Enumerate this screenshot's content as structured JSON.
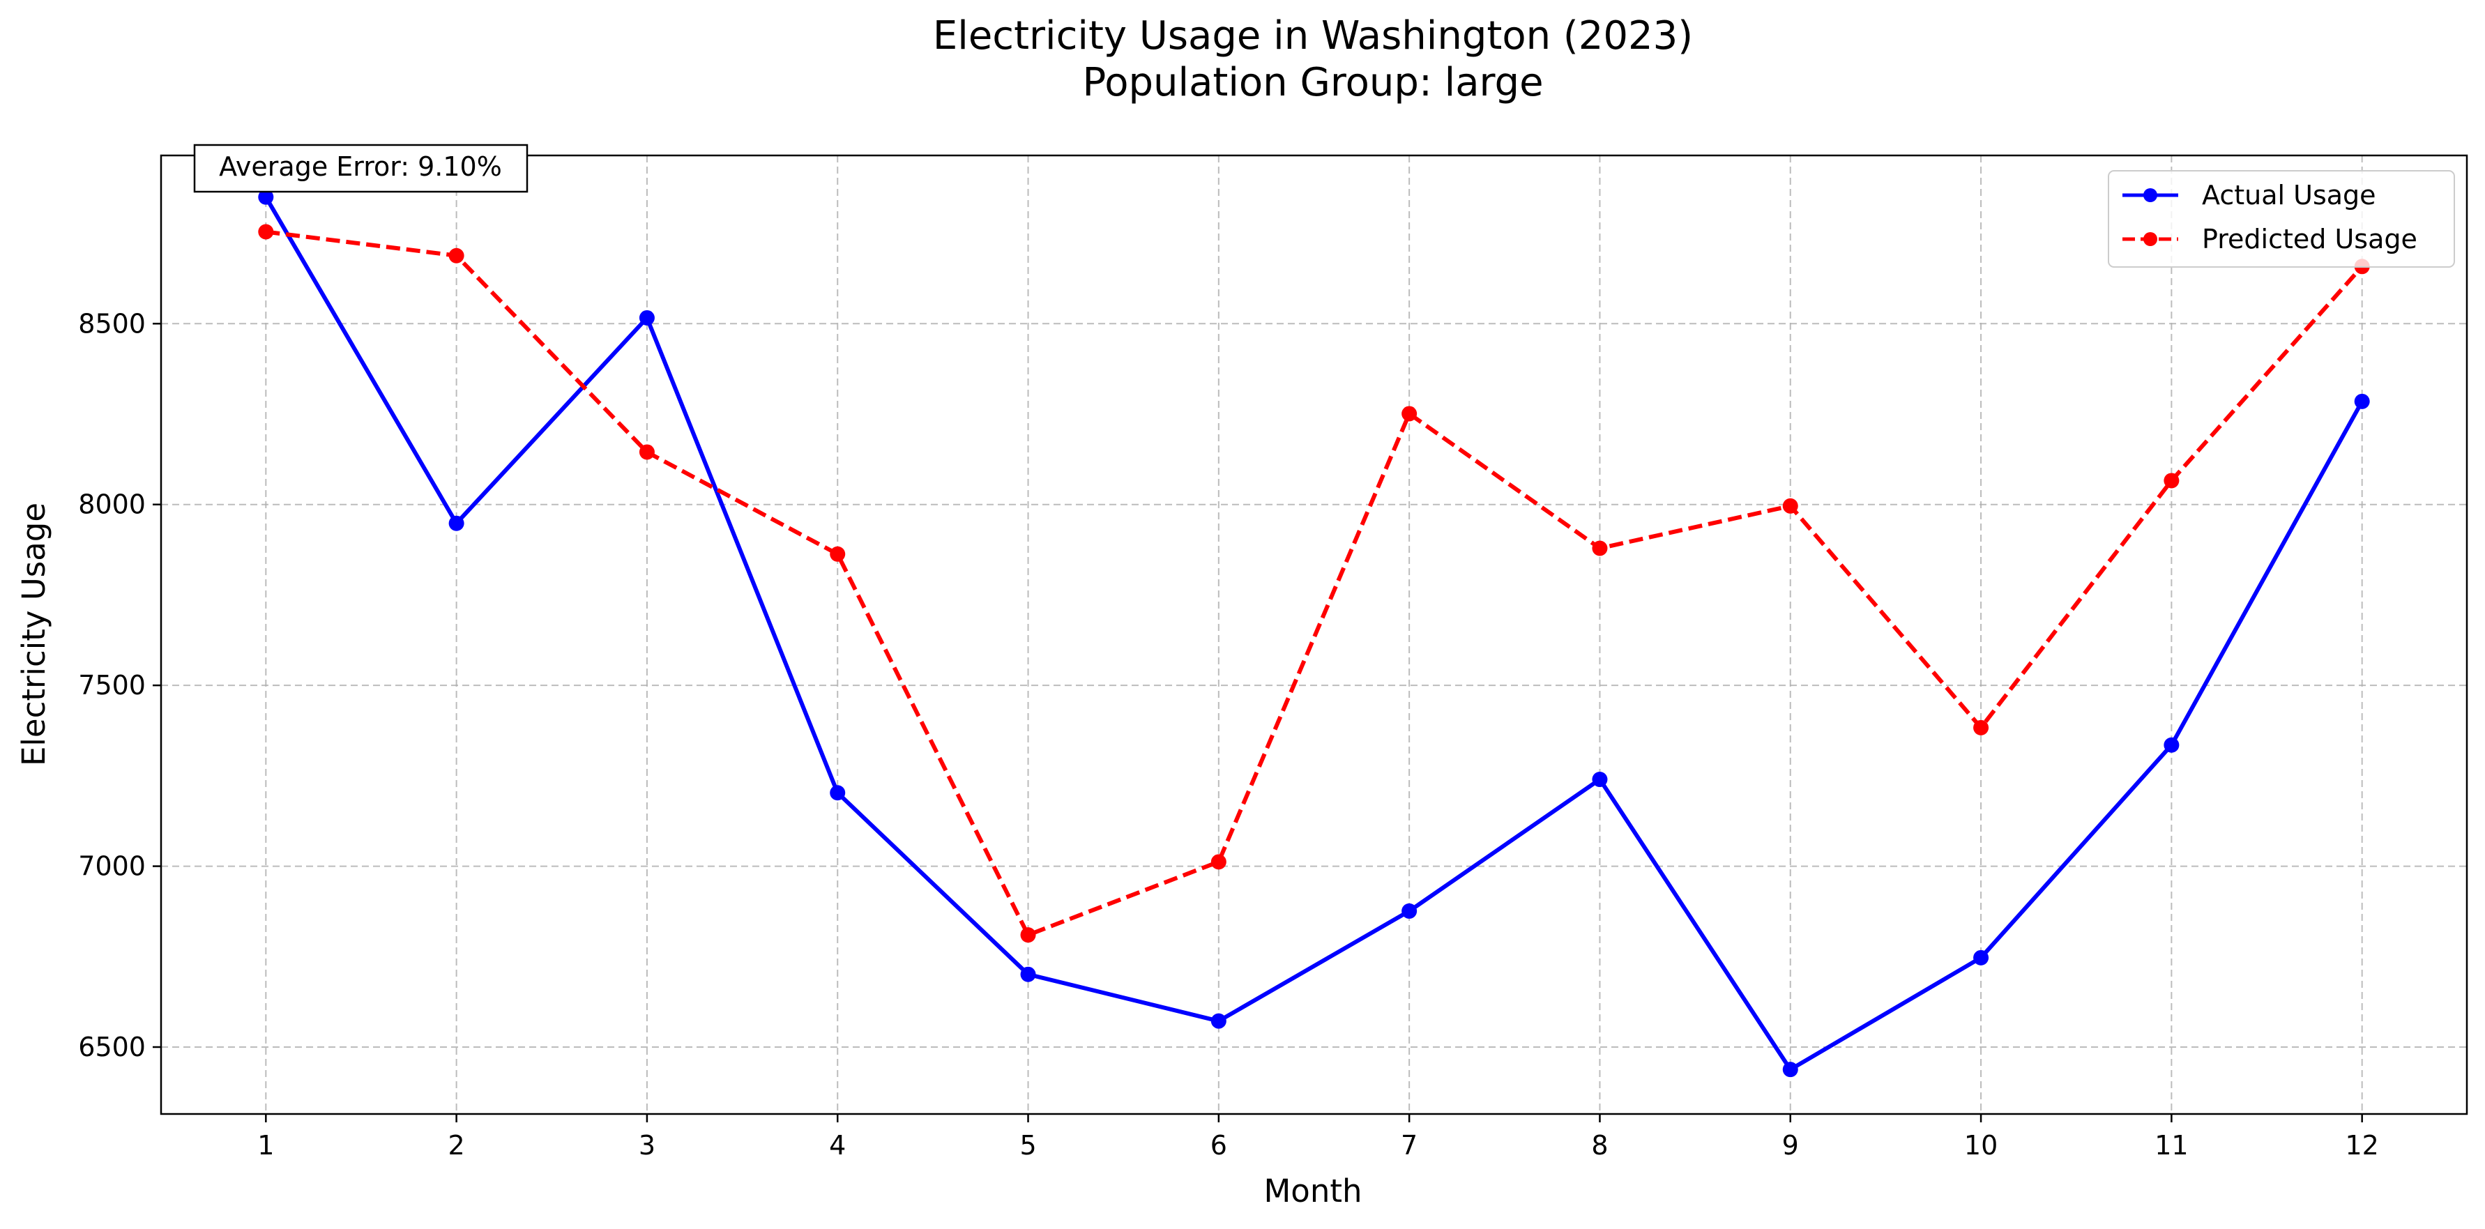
{
  "chart_data": {
    "type": "line",
    "title": "Electricity Usage in Washington (2023)",
    "subtitle": "Population Group: large",
    "xlabel": "Month",
    "ylabel": "Electricity Usage",
    "x": [
      1,
      2,
      3,
      4,
      5,
      6,
      7,
      8,
      9,
      10,
      11,
      12
    ],
    "x_tick_labels": [
      "1",
      "2",
      "3",
      "4",
      "5",
      "6",
      "7",
      "8",
      "9",
      "10",
      "11",
      "12"
    ],
    "xlim": [
      0.45,
      12.55
    ],
    "ylim": [
      6315,
      8965
    ],
    "y_ticks": [
      6500,
      7000,
      7500,
      8000,
      8500
    ],
    "y_tick_labels": [
      "6500",
      "7000",
      "7500",
      "8000",
      "8500"
    ],
    "grid": true,
    "legend_position": "top-right",
    "series": [
      {
        "name": "Actual Usage",
        "color": "#0000ff",
        "line_style": "solid",
        "marker": "circle",
        "values": [
          8850,
          7948,
          8516,
          7203,
          6701,
          6572,
          6876,
          7240,
          6438,
          6747,
          7335,
          8285
        ]
      },
      {
        "name": "Predicted Usage",
        "color": "#ff0000",
        "line_style": "dashed",
        "marker": "circle",
        "values": [
          8754,
          8688,
          8145,
          7863,
          6810,
          7012,
          8251,
          7879,
          7996,
          7383,
          8066,
          8658
        ]
      }
    ],
    "annotations": [
      {
        "text": "Average Error: 9.10%",
        "position": "top-left"
      }
    ]
  }
}
